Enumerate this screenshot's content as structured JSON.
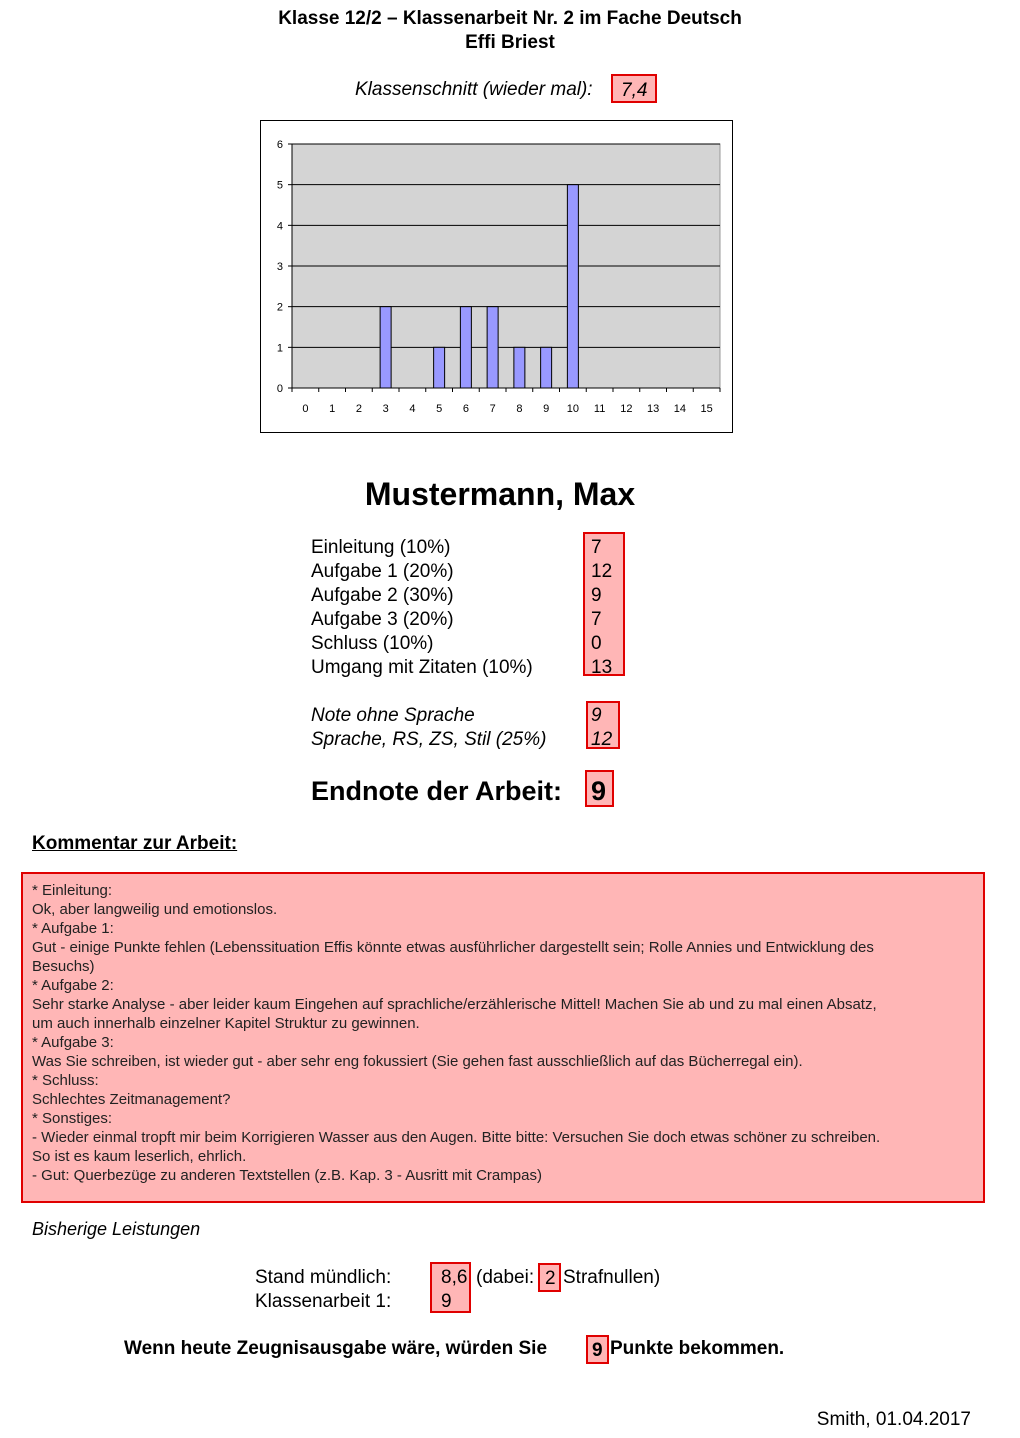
{
  "header": {
    "title": "Klasse 12/2 – Klassenarbeit Nr. 2 im Fache Deutsch",
    "subtitle": "Effi Briest"
  },
  "average": {
    "label": "Klassenschnitt (wieder mal):",
    "value": "7,4"
  },
  "chart_data": {
    "type": "bar",
    "categories": [
      "0",
      "1",
      "2",
      "3",
      "4",
      "5",
      "6",
      "7",
      "8",
      "9",
      "10",
      "11",
      "12",
      "13",
      "14",
      "15"
    ],
    "values": [
      0,
      0,
      0,
      2,
      0,
      1,
      2,
      2,
      1,
      1,
      5,
      0,
      0,
      0,
      0,
      0
    ],
    "ylim": [
      0,
      6
    ],
    "yticks": [
      "0",
      "1",
      "2",
      "3",
      "4",
      "5",
      "6"
    ],
    "grid": true,
    "colors": {
      "bar": "#9999ff",
      "plot_bg": "#d4d4d4"
    }
  },
  "student": {
    "name": "Mustermann, Max"
  },
  "scores": [
    {
      "label": "Einleitung (10%)",
      "value": "7"
    },
    {
      "label": "Aufgabe 1 (20%)",
      "value": "12"
    },
    {
      "label": "Aufgabe 2 (30%)",
      "value": "9"
    },
    {
      "label": "Aufgabe 3 (20%)",
      "value": "7"
    },
    {
      "label": "Schluss (10%)",
      "value": "0"
    },
    {
      "label": "Umgang mit Zitaten (10%)",
      "value": "13"
    }
  ],
  "notes": [
    {
      "label": "Note ohne Sprache",
      "value": "9"
    },
    {
      "label": "Sprache, RS, ZS, Stil (25%)",
      "value": "12"
    }
  ],
  "final": {
    "label": "Endnote der Arbeit:",
    "value": "9"
  },
  "comment": {
    "heading": "Kommentar zur Arbeit:",
    "lines": [
      "* Einleitung:",
      "Ok, aber langweilig und emotionslos.",
      "* Aufgabe 1:",
      "Gut - einige Punkte fehlen (Lebenssituation Effis könnte etwas ausführlicher dargestellt sein; Rolle Annies und Entwicklung des",
      "Besuchs)",
      "* Aufgabe 2:",
      "Sehr starke Analyse - aber leider kaum Eingehen auf sprachliche/erzählerische Mittel! Machen Sie ab und zu mal einen Absatz,",
      "um auch innerhalb einzelner Kapitel Struktur zu gewinnen.",
      "* Aufgabe 3:",
      "Was Sie schreiben, ist wieder gut - aber sehr eng fokussiert (Sie gehen fast ausschließlich auf das Bücherregal ein).",
      "* Schluss:",
      "Schlechtes Zeitmanagement?",
      "* Sonstiges:",
      "- Wieder einmal tropft mir beim Korrigieren Wasser aus den Augen. Bitte bitte: Versuchen Sie doch etwas schöner zu schreiben.",
      "So ist es kaum leserlich, ehrlich.",
      "- Gut: Querbezüge zu anderen Textstellen (z.B. Kap. 3 - Ausritt mit Crampas)"
    ]
  },
  "history": {
    "heading": "Bisherige Leistungen",
    "oral_label": "Stand mündlich:",
    "oral_value": "8,6",
    "dabei": "(dabei:",
    "zeros": "2",
    "zeros_label": "Strafnullen)",
    "exam1_label": "Klassenarbeit 1:",
    "exam1_value": "9"
  },
  "report": {
    "before": "Wenn heute Zeugnisausgabe wäre, würden Sie",
    "value": "9",
    "after": "Punkte bekommen."
  },
  "signature": "Smith, 01.04.2017"
}
